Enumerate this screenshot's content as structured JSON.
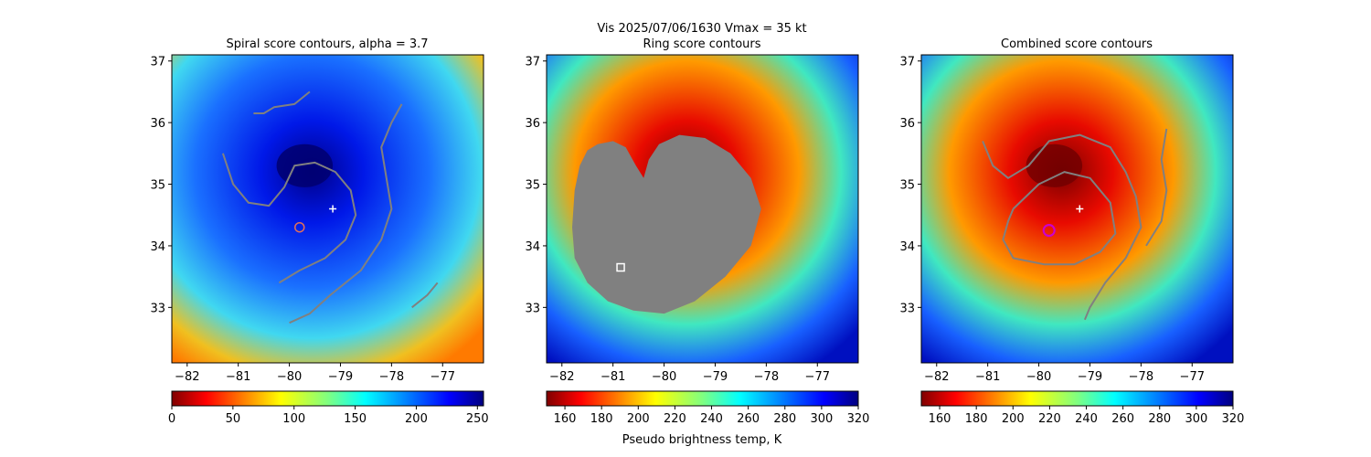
{
  "figure": {
    "suptitle_line1": "Vis  2025/07/06/1630    Vmax = 35 kt",
    "colors": {
      "contour": "#808080",
      "masked": "#808080",
      "spiral_marker": "#e0705a",
      "combined_marker": "#cc00cc",
      "center_marker": "#ffffff"
    }
  },
  "chart_data": [
    {
      "type": "heatmap",
      "title": "Spiral score contours, alpha =  3.7",
      "colormap": "jet_r",
      "xlim": [
        -82.3,
        -76.2
      ],
      "ylim": [
        32.1,
        37.1
      ],
      "xticks": [
        -82,
        -81,
        -80,
        -79,
        -78,
        -77
      ],
      "yticks": [
        33,
        34,
        35,
        36,
        37
      ],
      "colorbar": {
        "ticks": [
          0,
          50,
          100,
          150,
          200,
          250
        ],
        "range": [
          0,
          255
        ],
        "label": ""
      },
      "cold_center": {
        "lon": -79.7,
        "lat": 35.3
      },
      "center_marker": {
        "lon": -79.15,
        "lat": 34.6,
        "symbol": "+"
      },
      "best_marker": {
        "lon": -79.8,
        "lat": 34.3,
        "symbol": "o"
      },
      "contours": [
        [
          [
            -80.7,
            36.15
          ],
          [
            -80.5,
            36.15
          ],
          [
            -80.3,
            36.25
          ],
          [
            -79.9,
            36.3
          ],
          [
            -79.6,
            36.5
          ]
        ],
        [
          [
            -81.3,
            35.5
          ],
          [
            -81.1,
            35.0
          ],
          [
            -80.8,
            34.7
          ],
          [
            -80.4,
            34.65
          ],
          [
            -80.1,
            34.95
          ],
          [
            -79.9,
            35.3
          ],
          [
            -79.5,
            35.35
          ],
          [
            -79.1,
            35.2
          ],
          [
            -78.8,
            34.9
          ],
          [
            -78.7,
            34.5
          ],
          [
            -78.9,
            34.1
          ],
          [
            -79.3,
            33.8
          ],
          [
            -79.8,
            33.6
          ],
          [
            -80.2,
            33.4
          ]
        ],
        [
          [
            -77.8,
            36.3
          ],
          [
            -78.0,
            36.0
          ],
          [
            -78.2,
            35.6
          ],
          [
            -78.1,
            35.1
          ],
          [
            -78.0,
            34.6
          ],
          [
            -78.2,
            34.1
          ],
          [
            -78.6,
            33.6
          ],
          [
            -79.2,
            33.2
          ],
          [
            -79.6,
            32.9
          ],
          [
            -80.0,
            32.75
          ]
        ],
        [
          [
            -77.6,
            33.0
          ],
          [
            -77.3,
            33.2
          ],
          [
            -77.1,
            33.4
          ]
        ]
      ]
    },
    {
      "type": "heatmap",
      "title": "Ring score contours",
      "colormap": "jet_r",
      "xlim": [
        -82.3,
        -76.2
      ],
      "ylim": [
        32.1,
        37.1
      ],
      "xticks": [
        -82,
        -81,
        -80,
        -79,
        -78,
        -77
      ],
      "yticks": [
        33,
        34,
        35,
        36,
        37
      ],
      "colorbar": {
        "ticks": [
          160,
          180,
          200,
          220,
          240,
          260,
          280,
          300,
          320
        ],
        "range": [
          150,
          320
        ],
        "label": "Pseudo brightness temp, K"
      },
      "cold_center": {
        "lon": -79.7,
        "lat": 35.3
      },
      "best_marker": {
        "lon": -80.85,
        "lat": 33.65,
        "symbol": "s"
      },
      "masked_region": [
        [
          -81.5,
          35.55
        ],
        [
          -81.3,
          35.65
        ],
        [
          -81.0,
          35.7
        ],
        [
          -80.75,
          35.6
        ],
        [
          -80.55,
          35.3
        ],
        [
          -80.4,
          35.1
        ],
        [
          -80.3,
          35.4
        ],
        [
          -80.1,
          35.65
        ],
        [
          -79.7,
          35.8
        ],
        [
          -79.2,
          35.75
        ],
        [
          -78.7,
          35.5
        ],
        [
          -78.3,
          35.1
        ],
        [
          -78.1,
          34.6
        ],
        [
          -78.3,
          34.0
        ],
        [
          -78.8,
          33.5
        ],
        [
          -79.4,
          33.1
        ],
        [
          -80.0,
          32.9
        ],
        [
          -80.6,
          32.95
        ],
        [
          -81.1,
          33.1
        ],
        [
          -81.5,
          33.4
        ],
        [
          -81.75,
          33.8
        ],
        [
          -81.8,
          34.3
        ],
        [
          -81.75,
          34.9
        ],
        [
          -81.65,
          35.3
        ]
      ]
    },
    {
      "type": "heatmap",
      "title": "Combined score contours",
      "colormap": "jet_r",
      "xlim": [
        -82.3,
        -76.2
      ],
      "ylim": [
        32.1,
        37.1
      ],
      "xticks": [
        -82,
        -81,
        -80,
        -79,
        -78,
        -77
      ],
      "yticks": [
        33,
        34,
        35,
        36,
        37
      ],
      "colorbar": {
        "ticks": [
          160,
          180,
          200,
          220,
          240,
          260,
          280,
          300,
          320
        ],
        "range": [
          150,
          320
        ],
        "label": ""
      },
      "cold_center": {
        "lon": -79.7,
        "lat": 35.3
      },
      "center_marker": {
        "lon": -79.2,
        "lat": 34.6,
        "symbol": "+"
      },
      "best_marker": {
        "lon": -79.8,
        "lat": 34.25,
        "symbol": "o"
      },
      "contours": [
        [
          [
            -81.1,
            35.7
          ],
          [
            -80.9,
            35.3
          ],
          [
            -80.6,
            35.1
          ],
          [
            -80.2,
            35.3
          ],
          [
            -79.8,
            35.7
          ],
          [
            -79.2,
            35.8
          ],
          [
            -78.6,
            35.6
          ],
          [
            -78.3,
            35.2
          ],
          [
            -78.1,
            34.8
          ],
          [
            -78.0,
            34.3
          ],
          [
            -78.3,
            33.8
          ],
          [
            -78.7,
            33.4
          ],
          [
            -79.0,
            33.0
          ],
          [
            -79.1,
            32.8
          ]
        ],
        [
          [
            -80.5,
            34.6
          ],
          [
            -80.0,
            35.0
          ],
          [
            -79.5,
            35.2
          ],
          [
            -79.0,
            35.1
          ],
          [
            -78.6,
            34.7
          ],
          [
            -78.5,
            34.2
          ],
          [
            -78.8,
            33.9
          ],
          [
            -79.3,
            33.7
          ],
          [
            -79.9,
            33.7
          ],
          [
            -80.5,
            33.8
          ],
          [
            -80.7,
            34.1
          ],
          [
            -80.6,
            34.4
          ],
          [
            -80.5,
            34.6
          ]
        ],
        [
          [
            -77.5,
            35.9
          ],
          [
            -77.6,
            35.4
          ],
          [
            -77.5,
            34.9
          ],
          [
            -77.6,
            34.4
          ],
          [
            -77.9,
            34.0
          ]
        ]
      ]
    }
  ]
}
